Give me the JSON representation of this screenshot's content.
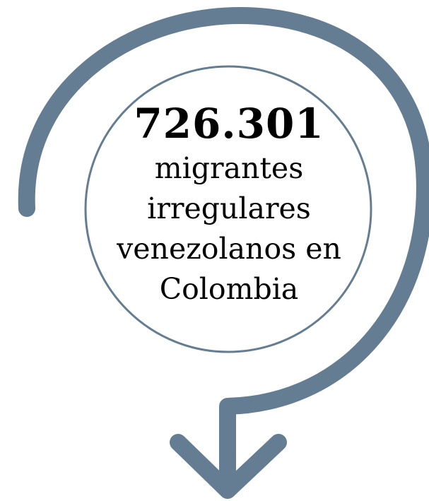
{
  "callout": {
    "figure": "726.301",
    "lines": [
      "migrantes",
      "irregulares",
      "venezolanos en",
      "Colombia"
    ]
  },
  "colors": {
    "arrow": "#657d92",
    "circle_border": "#657d92",
    "text": "#000000",
    "background": "#ffffff"
  },
  "icons": {
    "arrow": "curved-down-arrow-icon"
  }
}
